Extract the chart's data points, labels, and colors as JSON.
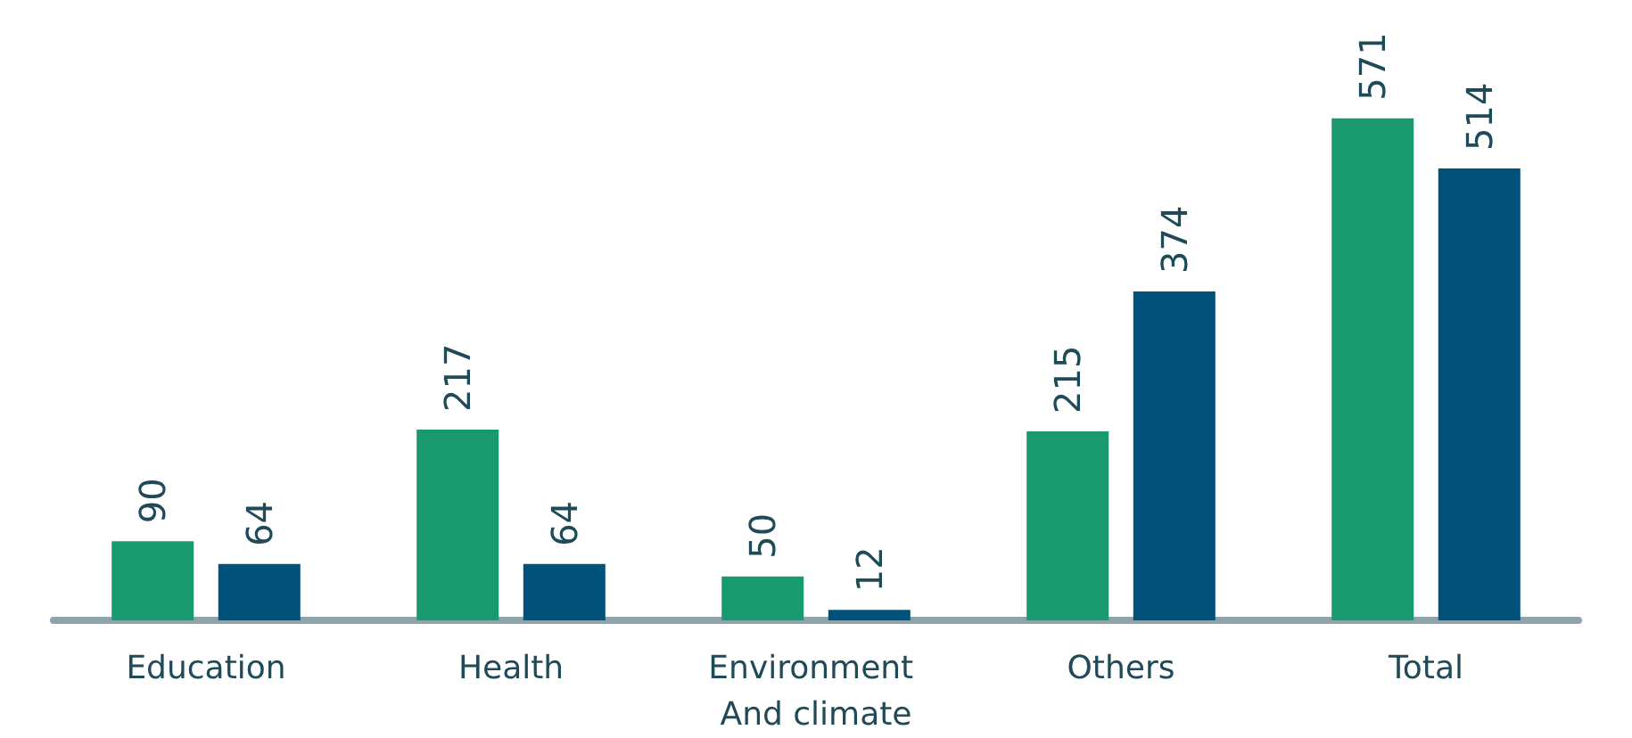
{
  "chart_data": {
    "type": "bar",
    "categories": [
      "Education",
      "Health",
      "Environment And climate",
      "Others",
      "Total"
    ],
    "series": [
      {
        "color": "#189a6e",
        "values": [
          90,
          217,
          50,
          215,
          571
        ]
      },
      {
        "color": "#00527a",
        "values": [
          64,
          64,
          12,
          374,
          514
        ]
      }
    ],
    "data_labels": true,
    "tick_labels": "x"
  }
}
